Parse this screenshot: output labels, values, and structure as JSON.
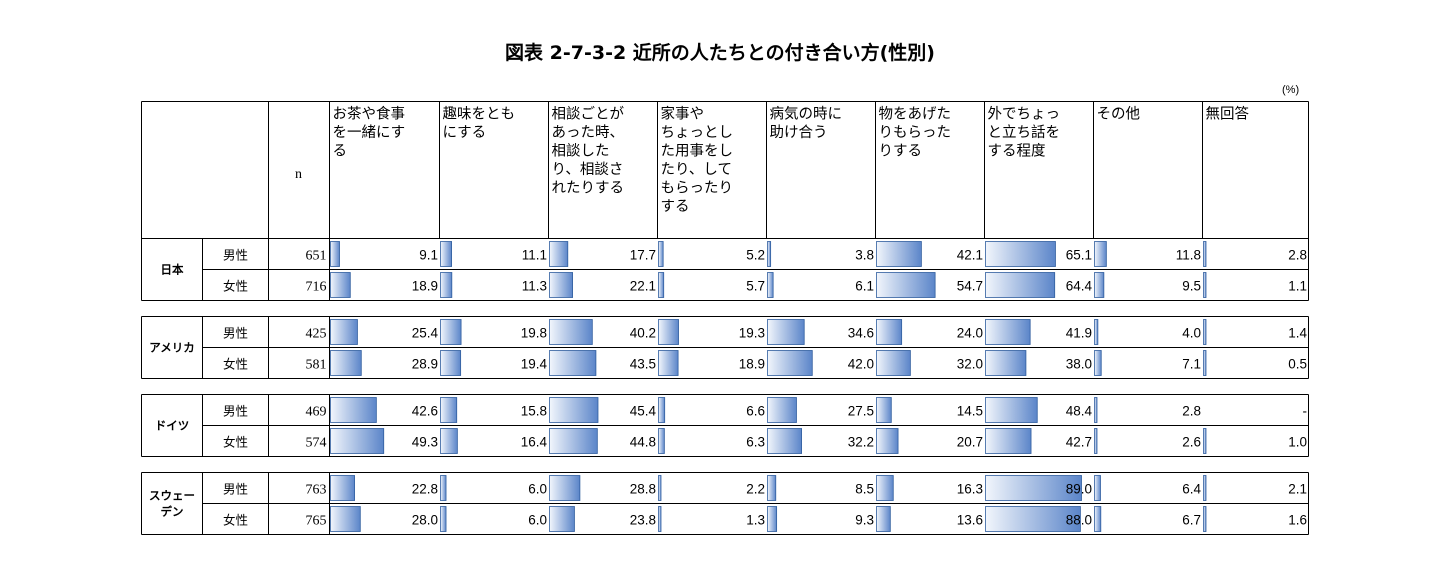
{
  "title": "図表 2-7-3-2  近所の人たちとの付き合い方(性別)",
  "unit": "(%)",
  "chart_data": {
    "type": "table",
    "n_label": "n",
    "columns": [
      [
        "お茶や食事",
        "を一緒にす",
        "る"
      ],
      [
        "趣味をとも",
        "にする"
      ],
      [
        "相談ごとが",
        "あった時、",
        "相談した",
        "り、相談さ",
        "れたりする"
      ],
      [
        "家事や",
        "ちょっとし",
        "た用事をし",
        "たり、して",
        "もらったり",
        "する"
      ],
      [
        "病気の時に",
        "助け合う"
      ],
      [
        "物をあげた",
        "りもらった",
        "りする"
      ],
      [
        "外でちょっ",
        "と立ち話を",
        "する程度"
      ],
      [
        "その他"
      ],
      [
        "無回答"
      ]
    ],
    "value_range": [
      0,
      100
    ],
    "groups": [
      {
        "country": [
          "日本"
        ],
        "rows": [
          {
            "sex": "男性",
            "n": "651",
            "values": [
              9.1,
              11.1,
              17.7,
              5.2,
              3.8,
              42.1,
              65.1,
              11.8,
              2.8
            ],
            "labels": [
              "9.1",
              "11.1",
              "17.7",
              "5.2",
              "3.8",
              "42.1",
              "65.1",
              "11.8",
              "2.8"
            ]
          },
          {
            "sex": "女性",
            "n": "716",
            "values": [
              18.9,
              11.3,
              22.1,
              5.7,
              6.1,
              54.7,
              64.4,
              9.5,
              1.1
            ],
            "labels": [
              "18.9",
              "11.3",
              "22.1",
              "5.7",
              "6.1",
              "54.7",
              "64.4",
              "9.5",
              "1.1"
            ]
          }
        ]
      },
      {
        "country": [
          "アメリカ"
        ],
        "rows": [
          {
            "sex": "男性",
            "n": "425",
            "values": [
              25.4,
              19.8,
              40.2,
              19.3,
              34.6,
              24.0,
              41.9,
              4.0,
              1.4
            ],
            "labels": [
              "25.4",
              "19.8",
              "40.2",
              "19.3",
              "34.6",
              "24.0",
              "41.9",
              "4.0",
              "1.4"
            ]
          },
          {
            "sex": "女性",
            "n": "581",
            "values": [
              28.9,
              19.4,
              43.5,
              18.9,
              42.0,
              32.0,
              38.0,
              7.1,
              0.5
            ],
            "labels": [
              "28.9",
              "19.4",
              "43.5",
              "18.9",
              "42.0",
              "32.0",
              "38.0",
              "7.1",
              "0.5"
            ]
          }
        ]
      },
      {
        "country": [
          "ドイツ"
        ],
        "rows": [
          {
            "sex": "男性",
            "n": "469",
            "values": [
              42.6,
              15.8,
              45.4,
              6.6,
              27.5,
              14.5,
              48.4,
              2.8,
              0
            ],
            "labels": [
              "42.6",
              "15.8",
              "45.4",
              "6.6",
              "27.5",
              "14.5",
              "48.4",
              "2.8",
              "-"
            ]
          },
          {
            "sex": "女性",
            "n": "574",
            "values": [
              49.3,
              16.4,
              44.8,
              6.3,
              32.2,
              20.7,
              42.7,
              2.6,
              1.0
            ],
            "labels": [
              "49.3",
              "16.4",
              "44.8",
              "6.3",
              "32.2",
              "20.7",
              "42.7",
              "2.6",
              "1.0"
            ]
          }
        ]
      },
      {
        "country": [
          "スウェー",
          "デン"
        ],
        "rows": [
          {
            "sex": "男性",
            "n": "763",
            "values": [
              22.8,
              6.0,
              28.8,
              2.2,
              8.5,
              16.3,
              89.0,
              6.4,
              2.1
            ],
            "labels": [
              "22.8",
              "6.0",
              "28.8",
              "2.2",
              "8.5",
              "16.3",
              "89.0",
              "6.4",
              "2.1"
            ]
          },
          {
            "sex": "女性",
            "n": "765",
            "values": [
              28.0,
              6.0,
              23.8,
              1.3,
              9.3,
              13.6,
              88.0,
              6.7,
              1.6
            ],
            "labels": [
              "28.0",
              "6.0",
              "23.8",
              "1.3",
              "9.3",
              "13.6",
              "88.0",
              "6.7",
              "1.6"
            ]
          }
        ]
      }
    ]
  },
  "colors": {
    "bar_light": "#f2f6fc",
    "bar_dark": "#5b85c9",
    "bar_edge": "#2f5d9e",
    "line": "#000000"
  }
}
